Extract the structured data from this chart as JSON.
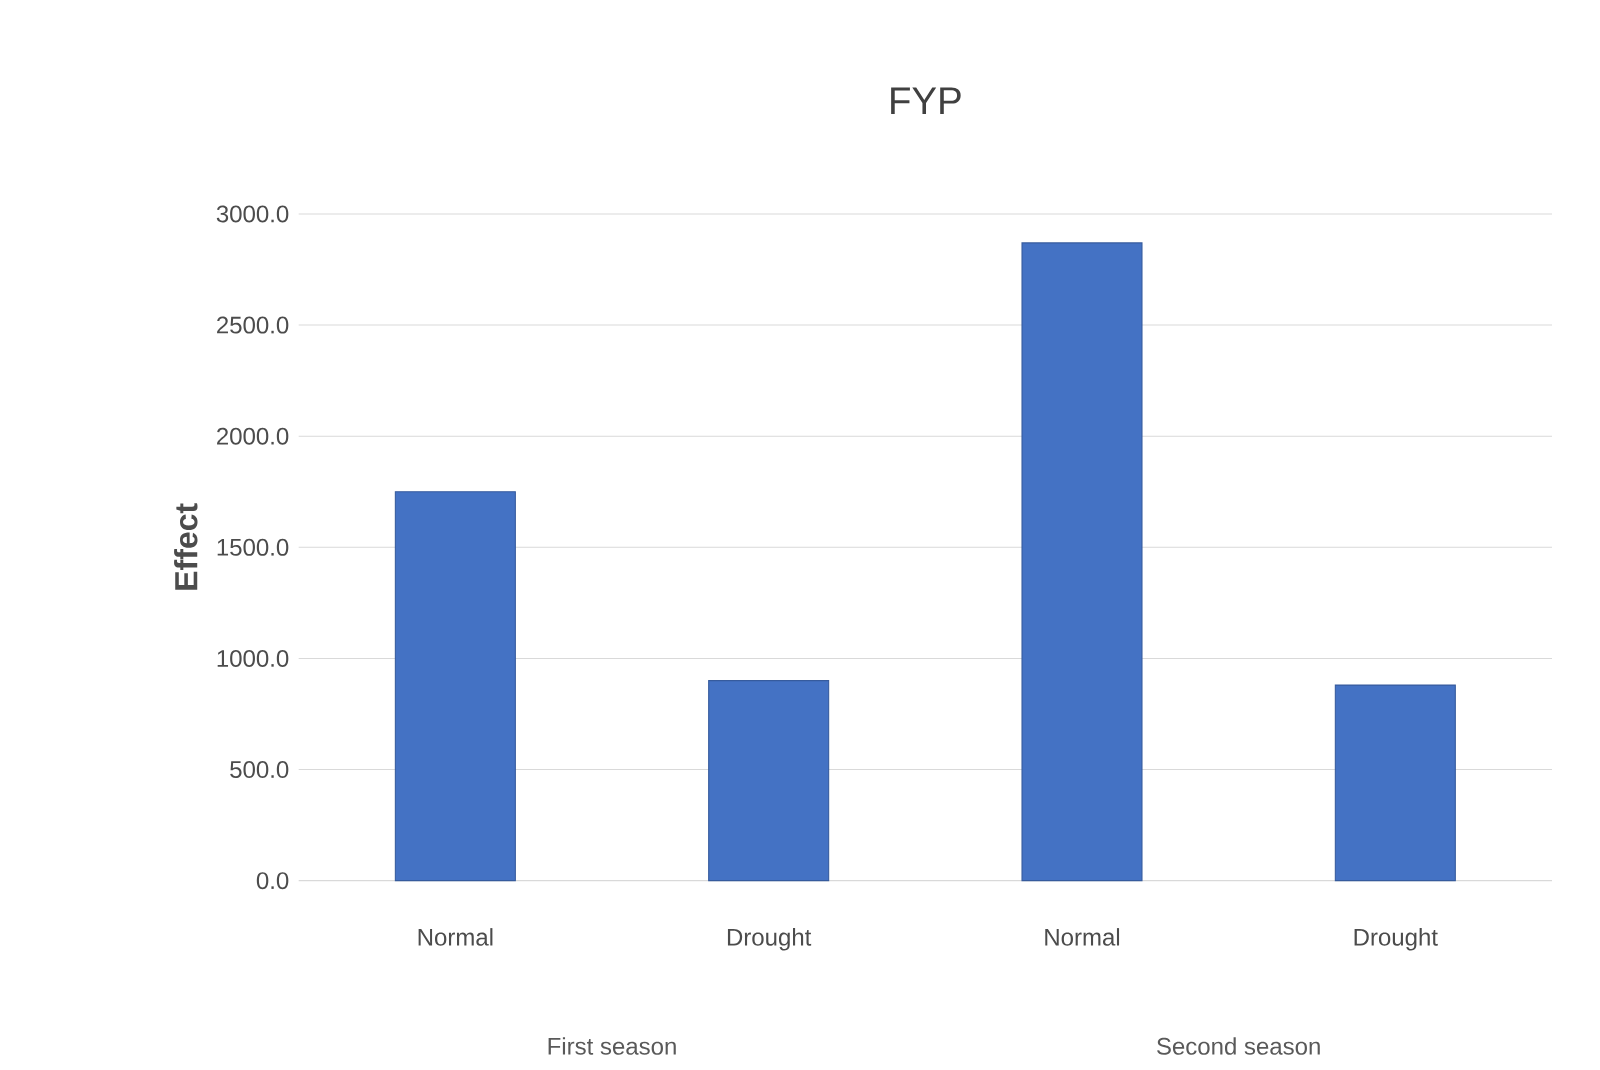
{
  "chart_data": {
    "type": "bar",
    "title": "FYP",
    "ylabel": "Effect",
    "categories": [
      "Normal",
      "Drought",
      "Normal",
      "Drought"
    ],
    "values": [
      1750,
      900,
      2870,
      880
    ],
    "color": "#4472c4",
    "ylim": [
      0,
      3000
    ],
    "yticks": [
      {
        "value": 0,
        "label": "0.0"
      },
      {
        "value": 500,
        "label": "500.0"
      },
      {
        "value": 1000,
        "label": "1000.0"
      },
      {
        "value": 1500,
        "label": "1500.0"
      },
      {
        "value": 2000,
        "label": "2000.0"
      },
      {
        "value": 2500,
        "label": "2500.0"
      },
      {
        "value": 3000,
        "label": "3000.0"
      }
    ],
    "grid": "y",
    "annotations": [
      "First season",
      "Second season"
    ]
  }
}
